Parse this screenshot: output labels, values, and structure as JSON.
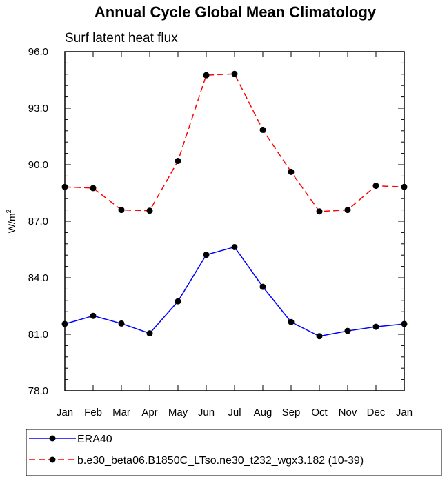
{
  "chart_data": {
    "type": "line",
    "title": "Annual Cycle Global Mean Climatology",
    "subtitle": "Surf latent heat flux",
    "ylabel": "W/m",
    "ylabel_sup": "2",
    "categories": [
      "Jan",
      "Feb",
      "Mar",
      "Apr",
      "May",
      "Jun",
      "Jul",
      "Aug",
      "Sep",
      "Oct",
      "Nov",
      "Dec",
      "Jan"
    ],
    "ylim": [
      78.0,
      96.0
    ],
    "yticks": [
      "78.0",
      "81.0",
      "84.0",
      "87.0",
      "90.0",
      "93.0",
      "96.0"
    ],
    "grid": false,
    "legend_position": "bottom",
    "series": [
      {
        "name": "ERA40",
        "color": "#0000ff",
        "dash": "solid",
        "values": [
          81.55,
          81.98,
          81.57,
          81.05,
          82.75,
          85.22,
          85.63,
          83.52,
          81.65,
          80.9,
          81.18,
          81.4,
          81.55
        ]
      },
      {
        "name": "b.e30_beta06.B1850C_LTso.ne30_t232_wgx3.182 (10-39)",
        "color": "#ff0000",
        "dash": "dashed",
        "values": [
          88.82,
          88.76,
          87.6,
          87.56,
          90.2,
          94.75,
          94.82,
          91.85,
          89.62,
          87.52,
          87.6,
          88.88,
          88.82
        ]
      }
    ]
  }
}
